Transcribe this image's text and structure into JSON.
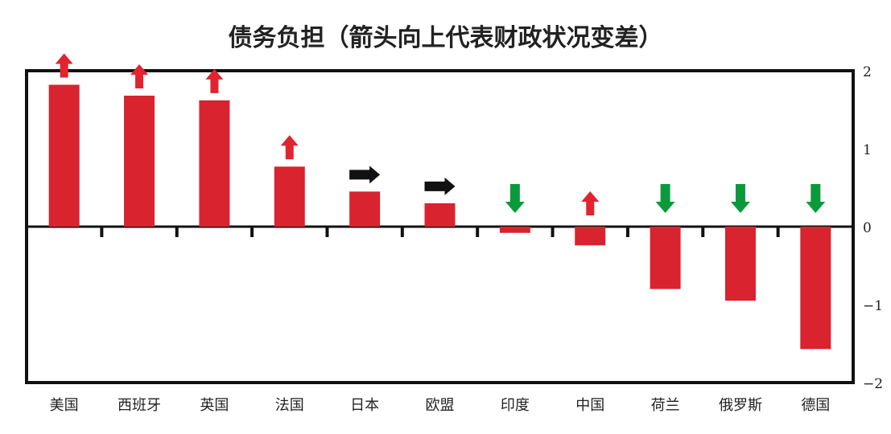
{
  "chart_data": {
    "type": "bar",
    "title": "债务负担（箭头向上代表财政状况变差）",
    "categories": [
      "美国",
      "西班牙",
      "英国",
      "法国",
      "日本",
      "欧盟",
      "印度",
      "中国",
      "荷兰",
      "俄罗斯",
      "德国"
    ],
    "values": [
      1.82,
      1.68,
      1.62,
      0.77,
      0.45,
      0.3,
      -0.08,
      -0.24,
      -0.8,
      -0.95,
      -1.57
    ],
    "arrows": [
      "up",
      "up",
      "up",
      "up",
      "right",
      "right",
      "down",
      "up",
      "down",
      "down",
      "down"
    ],
    "arrow_colors": {
      "up": "#e1242f",
      "right": "#111111",
      "down": "#0b9a3b"
    },
    "bar_color": "#d9232e",
    "ylim": [
      -2,
      2
    ],
    "yticks": [
      2,
      1,
      0,
      -1,
      -2
    ],
    "ytick_labels": [
      "2",
      "1",
      "0",
      "−1",
      "−2"
    ],
    "y_axis_side": "right",
    "grid": false,
    "legend": "none"
  }
}
